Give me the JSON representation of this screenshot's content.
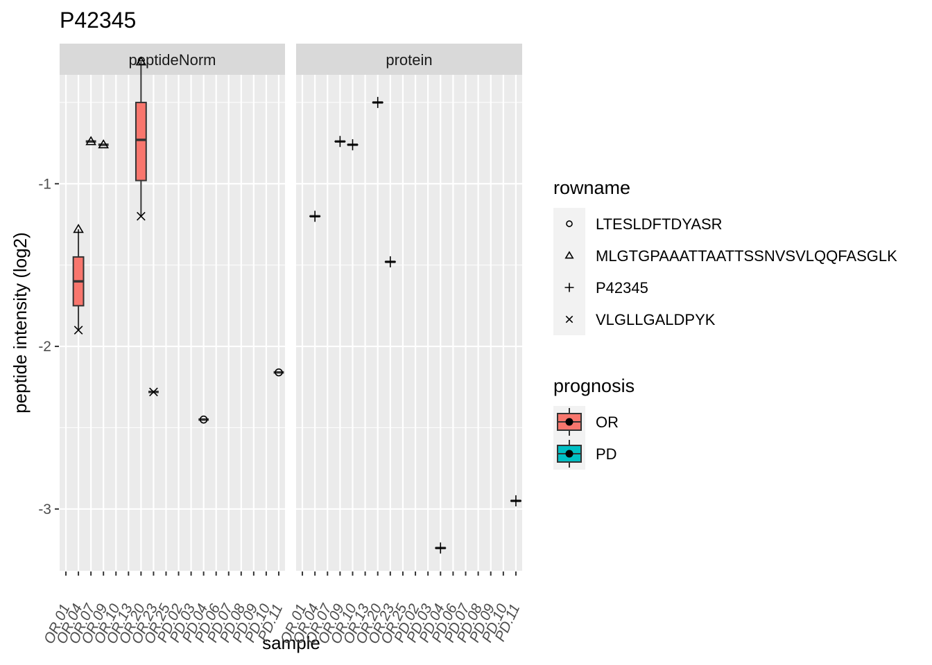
{
  "chart_data": {
    "type": "boxplot",
    "title": "P42345",
    "xlabel": "sample",
    "ylabel": "peptide intensity (log2)",
    "ylim": [
      -3.38,
      -0.33
    ],
    "yticks": [
      -3,
      -2,
      -1
    ],
    "grid": true,
    "facets": [
      "peptideNorm",
      "protein"
    ],
    "categories": [
      "OR.01",
      "OR.04",
      "OR.07",
      "OR.09",
      "OR.10",
      "OR.13",
      "OR.20",
      "OR.23",
      "OR.25",
      "PD.02",
      "PD.03",
      "PD.04",
      "PD.06",
      "PD.07",
      "PD.08",
      "PD.09",
      "PD.10",
      "PD.11"
    ],
    "tick_labels": [
      "OR.01",
      "OR.04",
      "OR.07",
      "OR.09",
      "OR.10",
      "OR.13",
      "OR.20",
      "OR.23",
      "OR.25",
      "PD.02",
      "PD.03",
      "PD.04",
      "PD.06",
      "PD.07",
      "PD.08",
      "PD.09",
      "PD.10",
      "PD.11"
    ],
    "boxes": {
      "peptideNorm": [
        {
          "sample": "OR.04",
          "group": "OR",
          "q1": -1.75,
          "median": -1.6,
          "q3": -1.45,
          "lower": -1.9,
          "upper": -1.28
        },
        {
          "sample": "OR.07",
          "group": "OR",
          "q1": -0.74,
          "median": -0.74,
          "q3": -0.74,
          "lower": -0.74,
          "upper": -0.74
        },
        {
          "sample": "OR.09",
          "group": "OR",
          "q1": -0.76,
          "median": -0.76,
          "q3": -0.76,
          "lower": -0.76,
          "upper": -0.76
        },
        {
          "sample": "OR.20",
          "group": "OR",
          "q1": -0.98,
          "median": -0.73,
          "q3": -0.5,
          "lower": -1.2,
          "upper": -0.25
        },
        {
          "sample": "OR.23",
          "group": "OR",
          "q1": -2.28,
          "median": -2.28,
          "q3": -2.28,
          "lower": -2.28,
          "upper": -2.28
        },
        {
          "sample": "PD.04",
          "group": "PD",
          "q1": -2.45,
          "median": -2.45,
          "q3": -2.45,
          "lower": -2.45,
          "upper": -2.45
        },
        {
          "sample": "PD.11",
          "group": "PD",
          "q1": -2.16,
          "median": -2.16,
          "q3": -2.16,
          "lower": -2.16,
          "upper": -2.16
        }
      ],
      "protein": [
        {
          "sample": "OR.04",
          "group": "OR",
          "q1": -1.2,
          "median": -1.2,
          "q3": -1.2,
          "lower": -1.2,
          "upper": -1.2
        },
        {
          "sample": "OR.09",
          "group": "OR",
          "q1": -0.74,
          "median": -0.74,
          "q3": -0.74,
          "lower": -0.74,
          "upper": -0.74
        },
        {
          "sample": "OR.10",
          "group": "OR",
          "q1": -0.76,
          "median": -0.76,
          "q3": -0.76,
          "lower": -0.76,
          "upper": -0.76
        },
        {
          "sample": "OR.20",
          "group": "OR",
          "q1": -0.5,
          "median": -0.5,
          "q3": -0.5,
          "lower": -0.5,
          "upper": -0.5
        },
        {
          "sample": "OR.23",
          "group": "OR",
          "q1": -1.48,
          "median": -1.48,
          "q3": -1.48,
          "lower": -1.48,
          "upper": -1.48
        },
        {
          "sample": "PD.04",
          "group": "PD",
          "q1": -3.24,
          "median": -3.24,
          "q3": -3.24,
          "lower": -3.24,
          "upper": -3.24
        },
        {
          "sample": "PD.11",
          "group": "PD",
          "q1": -2.95,
          "median": -2.95,
          "q3": -2.95,
          "lower": -2.95,
          "upper": -2.95
        }
      ]
    },
    "points": {
      "peptideNorm": [
        {
          "sample": "OR.04",
          "y": -1.28,
          "rowname": "MLGTGPAAATTAATTSSNVSVLQQFASGLK"
        },
        {
          "sample": "OR.04",
          "y": -1.9,
          "rowname": "VLGLLGALDPYK"
        },
        {
          "sample": "OR.07",
          "y": -0.74,
          "rowname": "MLGTGPAAATTAATTSSNVSVLQQFASGLK"
        },
        {
          "sample": "OR.09",
          "y": -0.76,
          "rowname": "MLGTGPAAATTAATTSSNVSVLQQFASGLK"
        },
        {
          "sample": "OR.20",
          "y": -0.25,
          "rowname": "MLGTGPAAATTAATTSSNVSVLQQFASGLK"
        },
        {
          "sample": "OR.20",
          "y": -1.2,
          "rowname": "VLGLLGALDPYK"
        },
        {
          "sample": "OR.23",
          "y": -2.28,
          "rowname": "VLGLLGALDPYK"
        },
        {
          "sample": "PD.04",
          "y": -2.45,
          "rowname": "LTESLDFTDYASR"
        },
        {
          "sample": "PD.11",
          "y": -2.16,
          "rowname": "LTESLDFTDYASR"
        }
      ],
      "protein": [
        {
          "sample": "OR.04",
          "y": -1.2,
          "rowname": "P42345"
        },
        {
          "sample": "OR.09",
          "y": -0.74,
          "rowname": "P42345"
        },
        {
          "sample": "OR.10",
          "y": -0.76,
          "rowname": "P42345"
        },
        {
          "sample": "OR.20",
          "y": -0.5,
          "rowname": "P42345"
        },
        {
          "sample": "OR.23",
          "y": -1.48,
          "rowname": "P42345"
        },
        {
          "sample": "PD.04",
          "y": -3.24,
          "rowname": "P42345"
        },
        {
          "sample": "PD.11",
          "y": -2.95,
          "rowname": "P42345"
        }
      ]
    },
    "legend": {
      "placement": "right",
      "rowname": {
        "title": "rowname",
        "entries": [
          {
            "label": "LTESLDFTDYASR",
            "shape": "circle"
          },
          {
            "label": "MLGTGPAAATTAATTSSNVSVLQQFASGLK",
            "shape": "triangle"
          },
          {
            "label": "P42345",
            "shape": "plus"
          },
          {
            "label": "VLGLLGALDPYK",
            "shape": "cross"
          }
        ]
      },
      "prognosis": {
        "title": "prognosis",
        "entries": [
          {
            "label": "OR",
            "color": "#F8766D"
          },
          {
            "label": "PD",
            "color": "#00BFC4"
          }
        ]
      }
    },
    "colors": {
      "panel_bg": "#EBEBEB",
      "grid": "#FFFFFF",
      "strip_bg": "#D9D9D9",
      "line": "#333333"
    }
  }
}
